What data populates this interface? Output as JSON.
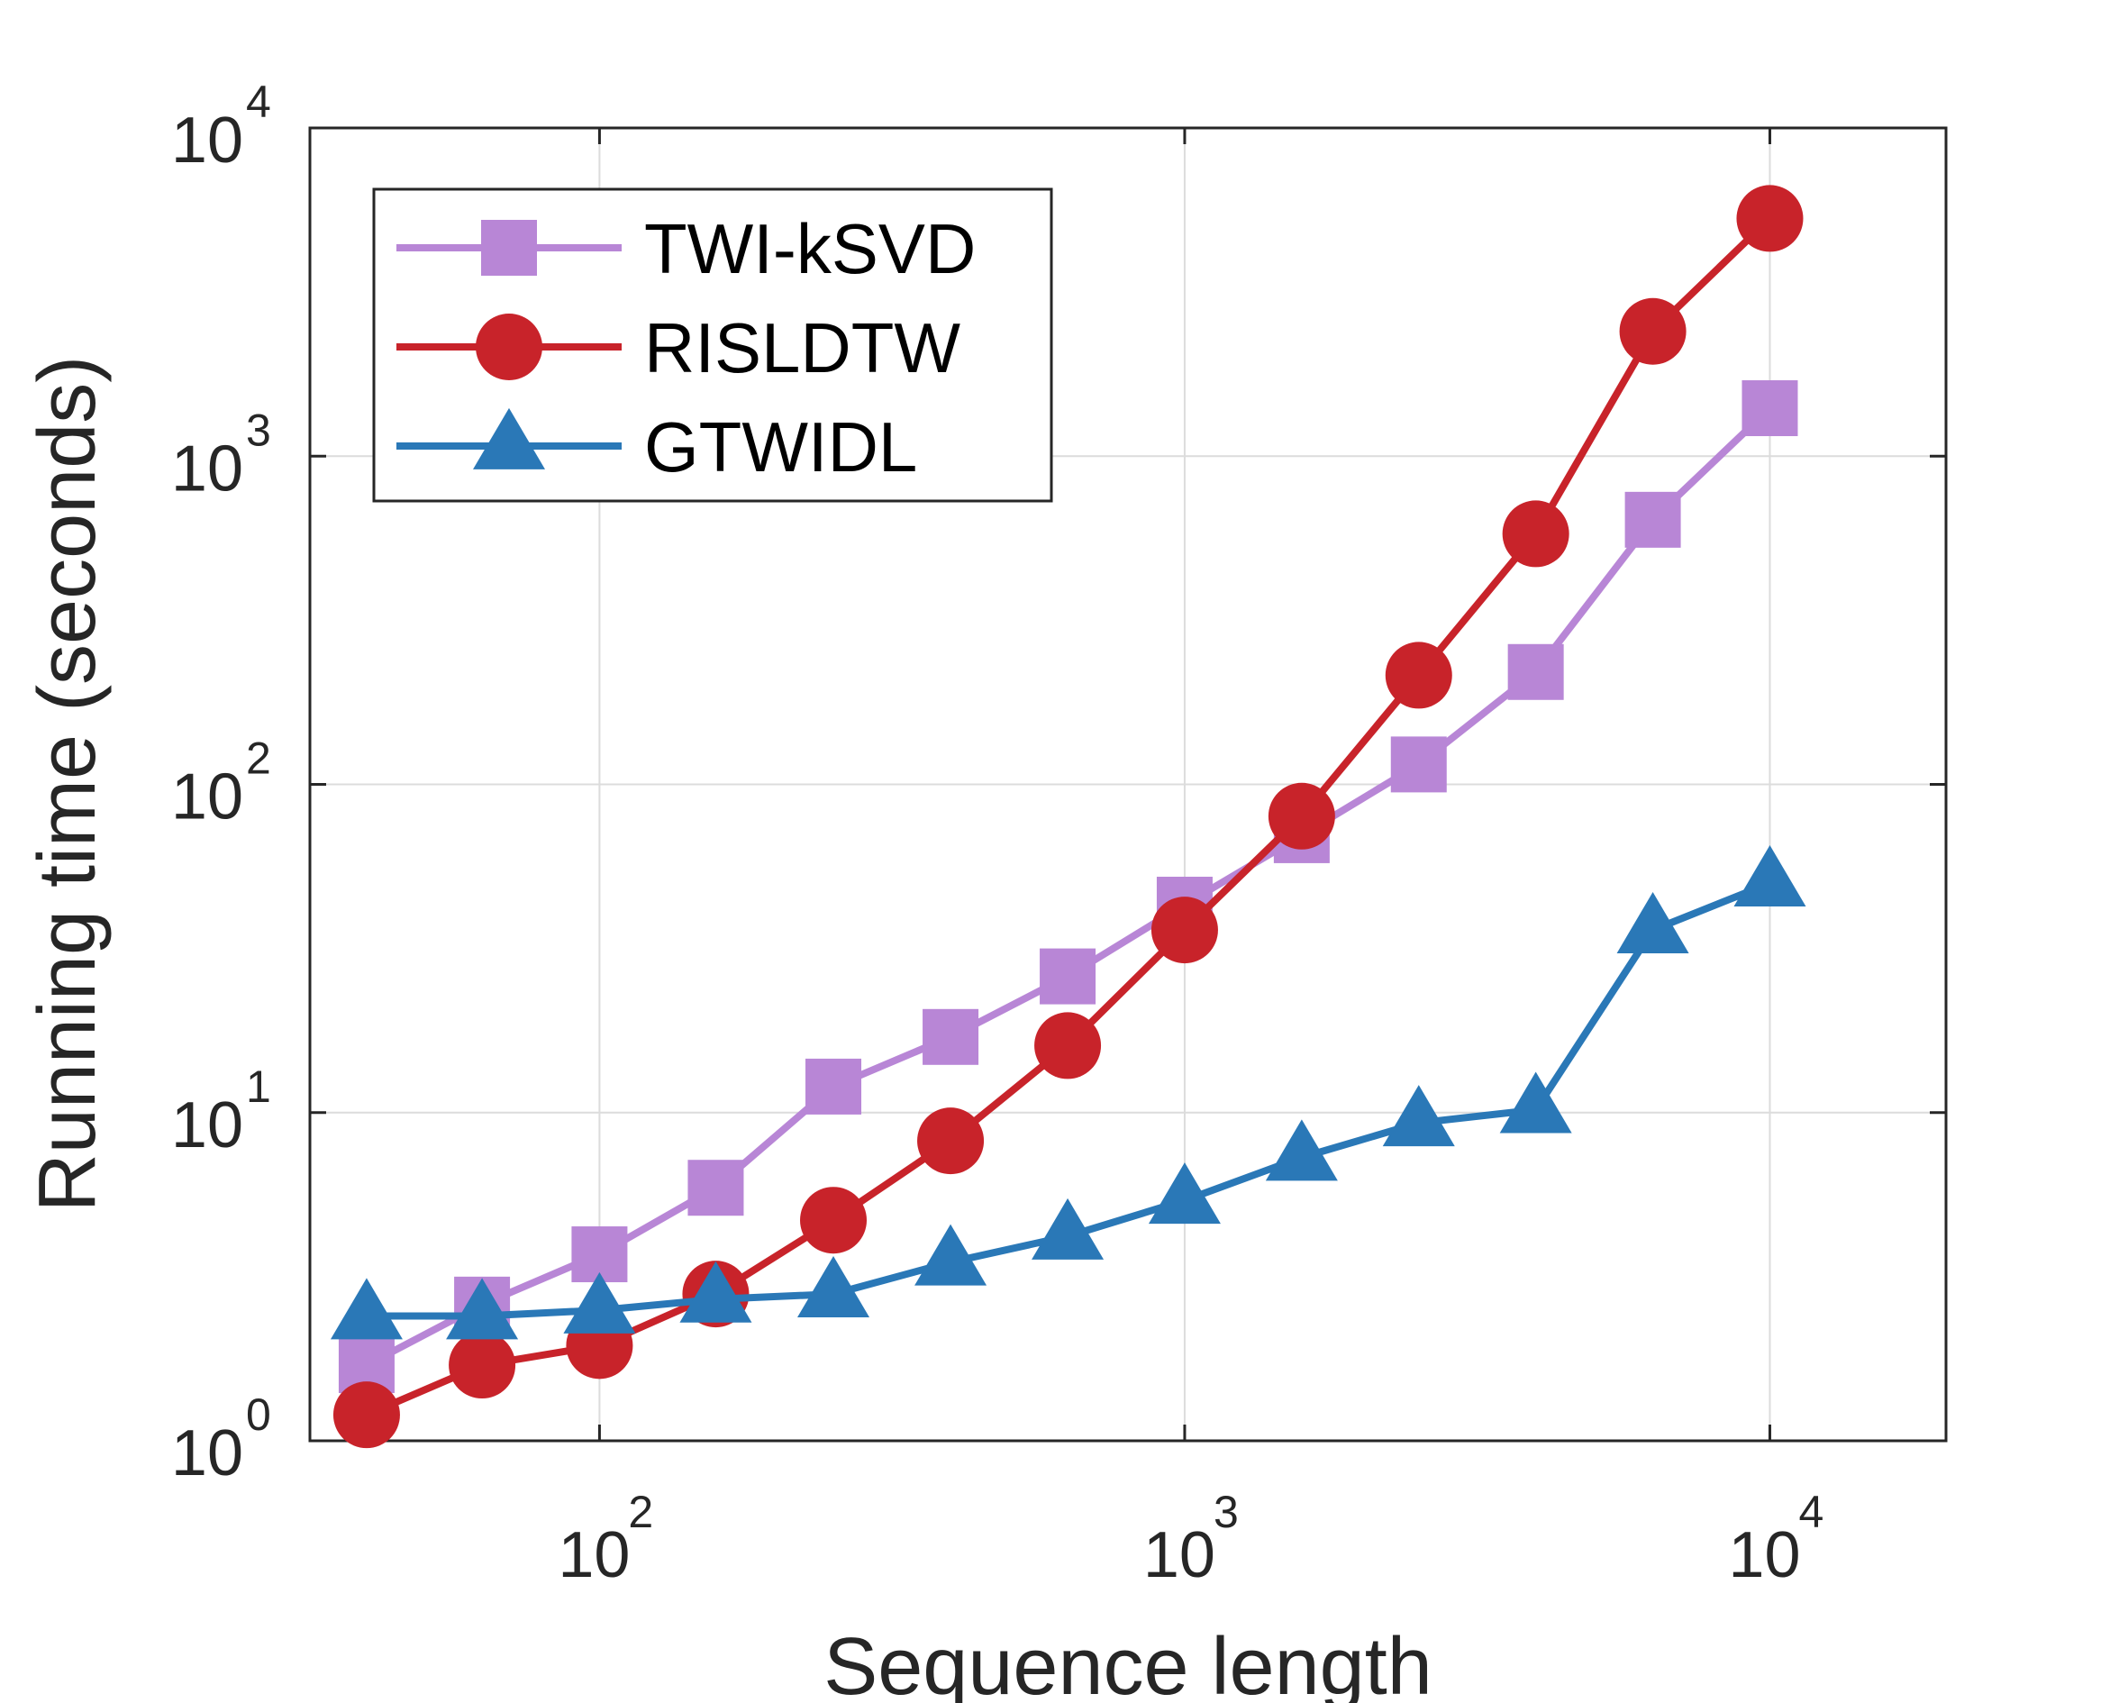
{
  "chart_data": {
    "type": "line",
    "title": "",
    "xlabel": "Sequence length",
    "ylabel": "Running time (seconds)",
    "xscale": "log",
    "yscale": "log",
    "xlim": [
      32,
      20000
    ],
    "ylim": [
      1,
      10000
    ],
    "grid": true,
    "legend_position": "top-left",
    "x_ticks": [
      {
        "base": "10",
        "exp": "2",
        "value": 100
      },
      {
        "base": "10",
        "exp": "3",
        "value": 1000
      },
      {
        "base": "10",
        "exp": "4",
        "value": 10000
      }
    ],
    "y_ticks": [
      {
        "base": "10",
        "exp": "0",
        "value": 1
      },
      {
        "base": "10",
        "exp": "1",
        "value": 10
      },
      {
        "base": "10",
        "exp": "2",
        "value": 100
      },
      {
        "base": "10",
        "exp": "3",
        "value": 1000
      },
      {
        "base": "10",
        "exp": "4",
        "value": 10000
      }
    ],
    "x": [
      40,
      63,
      100,
      158,
      251,
      398,
      631,
      1000,
      1585,
      2512,
      3981,
      6310,
      10000
    ],
    "series": [
      {
        "name": "TWI-kSVD",
        "color": "#B886D6",
        "marker": "square",
        "values": [
          1.7,
          2.6,
          3.7,
          5.9,
          12,
          17,
          26,
          43,
          70,
          115,
          220,
          640,
          1400
        ]
      },
      {
        "name": "RISLDTW",
        "color": "#C8232A",
        "marker": "circle",
        "values": [
          1.2,
          1.7,
          1.95,
          2.8,
          4.7,
          8.2,
          16,
          36,
          80,
          215,
          580,
          2400,
          5300
        ]
      },
      {
        "name": "GTWIDL",
        "color": "#2A78B7",
        "marker": "triangle",
        "values": [
          2.4,
          2.4,
          2.5,
          2.7,
          2.8,
          3.5,
          4.2,
          5.4,
          7.3,
          9.3,
          10.2,
          36,
          50
        ]
      }
    ]
  }
}
